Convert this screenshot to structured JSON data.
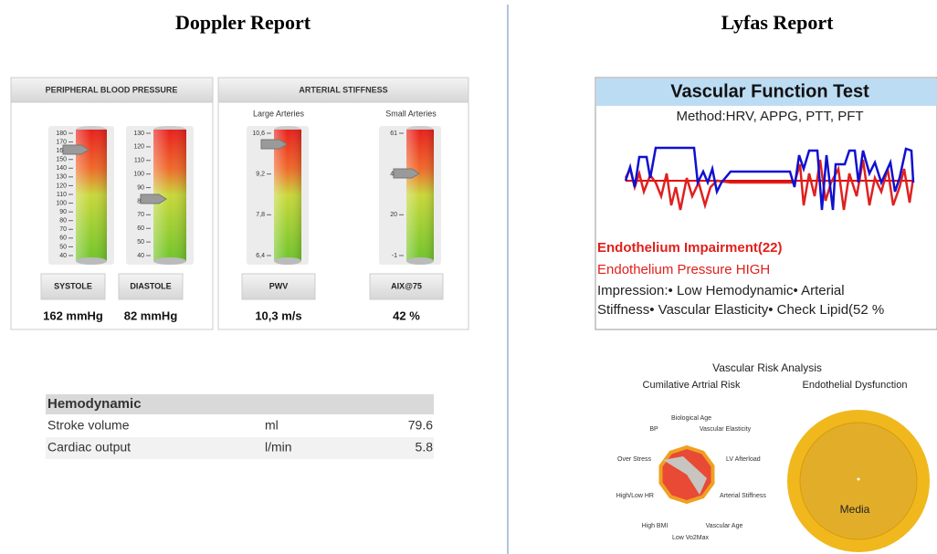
{
  "left": {
    "title": "Doppler Report",
    "peripheral": {
      "header": "PERIPHERAL BLOOD PRESSURE",
      "gauges": [
        {
          "ticks": [
            "180",
            "170",
            "160",
            "150",
            "140",
            "130",
            "120",
            "110",
            "100",
            "90",
            "80",
            "70",
            "60",
            "50",
            "40"
          ],
          "label": "SYSTOLE",
          "reading": "162 mmHg"
        },
        {
          "ticks": [
            "130",
            "120",
            "110",
            "100",
            "90",
            "80",
            "70",
            "60",
            "50",
            "40"
          ],
          "label": "DIASTOLE",
          "reading": "82 mmHg"
        }
      ]
    },
    "arterial": {
      "header": "ARTERIAL STIFFNESS",
      "gauges": [
        {
          "sublabel": "Large Arteries",
          "ticks": [
            "10,6",
            "9,2",
            "7,8",
            "6,4"
          ],
          "label": "PWV",
          "reading": "10,3 m/s"
        },
        {
          "sublabel": "Small Arteries",
          "ticks": [
            "61",
            "41",
            "20",
            "-1"
          ],
          "label": "AIX@75",
          "reading": "42 %"
        }
      ]
    },
    "hemodynamic": {
      "title": "Hemodynamic",
      "rows": [
        [
          "Stroke volume",
          "ml",
          "79.6"
        ],
        [
          "Cardiac output",
          "l/min",
          "5.8"
        ]
      ]
    }
  },
  "right": {
    "title": "Lyfas Report",
    "test_title": "Vascular Function Test",
    "method": "Method:HRV,  APPG, PTT, PFT",
    "impairment": "Endothelium Impairment(22)",
    "pressure": "Endothelium Pressure HIGH",
    "impression": [
      "Impression:• Low Hemodynamic• Arterial",
      "Stiffness• Vascular Elasticity• Check Lipid(52 %"
    ],
    "risk_title": "Vascular Risk Analysis",
    "radar_title": "Cumilative Artrial Risk",
    "radar_labels": [
      "Biological Age",
      "Vascular Elasticity",
      "LV Afterload",
      "Arterial Stiffness",
      "Vascular Age",
      "Low Vo2Max",
      "High BMI",
      "High/Low HR",
      "Over Stress",
      "BP"
    ],
    "circle_title": "Endothelial Dysfunction",
    "circle_label": "Media"
  }
}
